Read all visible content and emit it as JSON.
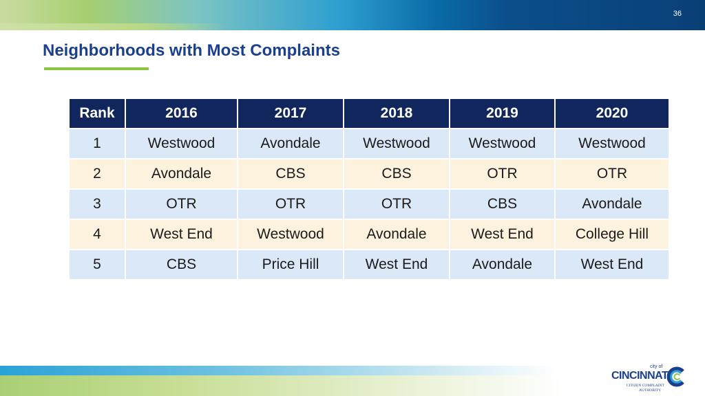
{
  "header": {
    "page_number": "36",
    "title": "Neighborhoods with Most Complaints"
  },
  "table": {
    "columns": [
      "Rank",
      "2016",
      "2017",
      "2018",
      "2019",
      "2020"
    ],
    "rows": [
      [
        "1",
        "Westwood",
        "Avondale",
        "Westwood",
        "Westwood",
        "Westwood"
      ],
      [
        "2",
        "Avondale",
        "CBS",
        "CBS",
        "OTR",
        "OTR"
      ],
      [
        "3",
        "OTR",
        "OTR",
        "OTR",
        "CBS",
        "Avondale"
      ],
      [
        "4",
        "West End",
        "Westwood",
        "Avondale",
        "West End",
        "College Hill"
      ],
      [
        "5",
        "CBS",
        "Price Hill",
        "West End",
        "Avondale",
        "West End"
      ]
    ]
  },
  "logo": {
    "city_of": "city of",
    "name": "CINCINNATI",
    "line1": "CITIZEN COMPLAINT",
    "line2": "AUTHORITY"
  },
  "colors": {
    "title": "#1b3f8f",
    "header_bg": "#12265e",
    "row_blue": "#dbe8f8",
    "row_cream": "#fdf2dd",
    "accent_green": "#8cc63f"
  }
}
